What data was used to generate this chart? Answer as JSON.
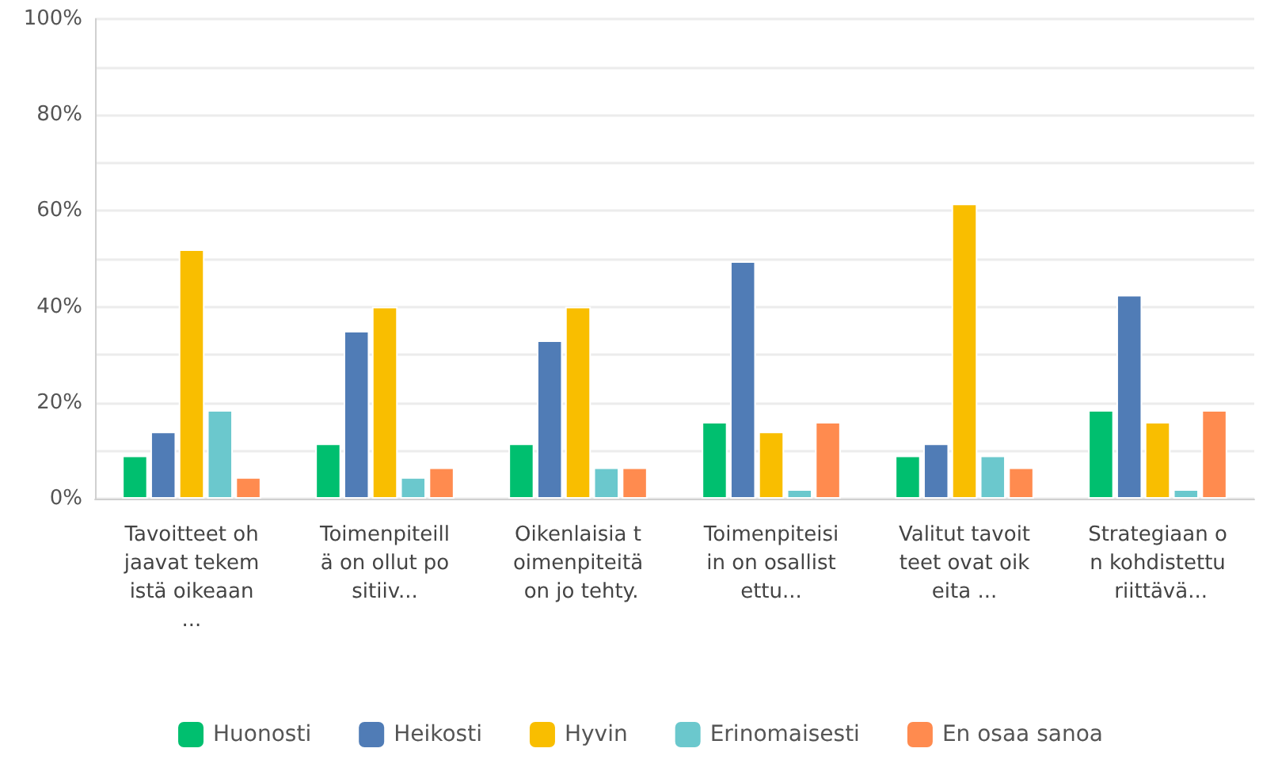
{
  "chart_data": {
    "type": "bar",
    "categories": [
      "Tavoitteet ohjaavat tekemistä oikeaan...",
      "Toimenpiteillä on ollut positiiv...",
      "Oikenlaisia toimenpiteitä on jo tehty.",
      "Toimenpiteisiin on osallistettu...",
      "Valitut tavoitteet ovat oikeita ...",
      "Strategiaan on kohdistettu riittävä..."
    ],
    "series": [
      {
        "name": "Huonosti",
        "color": "#00bf6f",
        "values": [
          9,
          11.5,
          11.5,
          16,
          9,
          18.5
        ]
      },
      {
        "name": "Heikosti",
        "color": "#507cb6",
        "values": [
          14,
          35,
          33,
          49.5,
          11.5,
          42.5
        ]
      },
      {
        "name": "Hyvin",
        "color": "#f9be00",
        "values": [
          52,
          40,
          40,
          14,
          61.5,
          16
        ]
      },
      {
        "name": "Erinomaisesti",
        "color": "#6bc8cd",
        "values": [
          18.5,
          4.5,
          6.5,
          2,
          9,
          2
        ]
      },
      {
        "name": "En osaa sanoa",
        "color": "#ff8b4f",
        "values": [
          4.5,
          6.5,
          6.5,
          16,
          6.5,
          18.5
        ]
      }
    ],
    "ylim": [
      0,
      100
    ],
    "yticks": [
      {
        "value": 0,
        "label": "0%"
      },
      {
        "value": 10,
        "label": null
      },
      {
        "value": 20,
        "label": "20%"
      },
      {
        "value": 30,
        "label": null
      },
      {
        "value": 40,
        "label": "40%"
      },
      {
        "value": 50,
        "label": null
      },
      {
        "value": 60,
        "label": "60%"
      },
      {
        "value": 70,
        "label": null
      },
      {
        "value": 80,
        "label": "80%"
      },
      {
        "value": 90,
        "label": null
      },
      {
        "value": 100,
        "label": "100%"
      }
    ],
    "grid": "y",
    "legend": "bottom"
  }
}
